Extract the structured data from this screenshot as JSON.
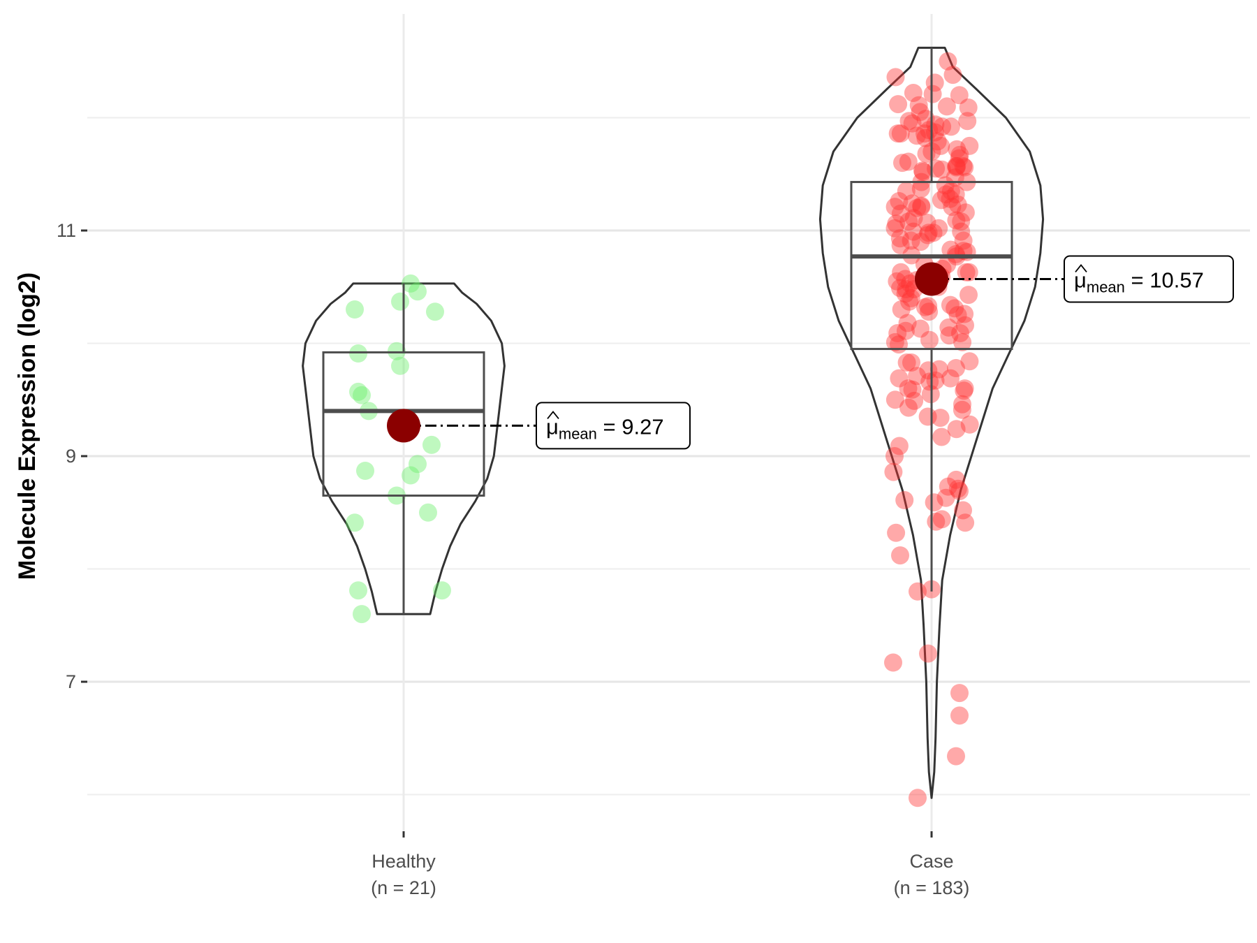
{
  "chart_data": {
    "type": "violin",
    "ylabel": "Molecule Expression (log2)",
    "xlabel": "",
    "ylim": [
      5.85,
      12.65
    ],
    "yticks": [
      7,
      9,
      11
    ],
    "ytick_labels": [
      "7",
      "9",
      "11"
    ],
    "grid": true,
    "groups": [
      {
        "label": "Healthy",
        "n_label": "(n = 21)",
        "color": "#66ee66",
        "violin_min": 7.6,
        "violin_max": 10.53,
        "density": [
          [
            7.6,
            0.2
          ],
          [
            7.8,
            0.24
          ],
          [
            8.0,
            0.29
          ],
          [
            8.2,
            0.35
          ],
          [
            8.4,
            0.43
          ],
          [
            8.6,
            0.54
          ],
          [
            8.8,
            0.63
          ],
          [
            9.0,
            0.68
          ],
          [
            9.2,
            0.7
          ],
          [
            9.4,
            0.72
          ],
          [
            9.6,
            0.74
          ],
          [
            9.8,
            0.76
          ],
          [
            10.0,
            0.74
          ],
          [
            10.2,
            0.66
          ],
          [
            10.35,
            0.55
          ],
          [
            10.45,
            0.44
          ],
          [
            10.53,
            0.38
          ]
        ],
        "box": {
          "q1": 8.65,
          "median": 9.4,
          "q3": 9.92,
          "whisker_low": 7.6,
          "whisker_high": 10.53
        },
        "mean": 9.27,
        "mean_label": "9.27",
        "points": [
          [
            -0.14,
            10.3
          ],
          [
            0.02,
            10.53
          ],
          [
            0.04,
            10.46
          ],
          [
            -0.01,
            10.37
          ],
          [
            0.09,
            10.28
          ],
          [
            -0.13,
            9.91
          ],
          [
            -0.02,
            9.93
          ],
          [
            -0.01,
            9.8
          ],
          [
            -0.13,
            9.57
          ],
          [
            -0.12,
            9.54
          ],
          [
            -0.1,
            9.4
          ],
          [
            0.08,
            9.1
          ],
          [
            0.04,
            8.93
          ],
          [
            0.02,
            8.83
          ],
          [
            -0.11,
            8.87
          ],
          [
            -0.02,
            8.65
          ],
          [
            0.07,
            8.5
          ],
          [
            -0.14,
            8.41
          ],
          [
            -0.13,
            7.81
          ],
          [
            0.11,
            7.81
          ],
          [
            -0.12,
            7.6
          ]
        ]
      },
      {
        "label": "Case",
        "n_label": "(n = 183)",
        "color": "#ff3333",
        "violin_min": 5.97,
        "violin_max": 12.62,
        "density": [
          [
            5.97,
            0.0
          ],
          [
            6.2,
            0.02
          ],
          [
            6.5,
            0.03
          ],
          [
            7.0,
            0.04
          ],
          [
            7.5,
            0.06
          ],
          [
            7.9,
            0.08
          ],
          [
            8.3,
            0.14
          ],
          [
            8.7,
            0.22
          ],
          [
            9.0,
            0.3
          ],
          [
            9.3,
            0.38
          ],
          [
            9.6,
            0.46
          ],
          [
            9.9,
            0.58
          ],
          [
            10.2,
            0.7
          ],
          [
            10.5,
            0.78
          ],
          [
            10.8,
            0.82
          ],
          [
            11.1,
            0.84
          ],
          [
            11.4,
            0.82
          ],
          [
            11.7,
            0.74
          ],
          [
            12.0,
            0.56
          ],
          [
            12.25,
            0.34
          ],
          [
            12.45,
            0.16
          ],
          [
            12.62,
            0.1
          ]
        ],
        "box": {
          "q1": 9.95,
          "median": 10.77,
          "q3": 11.43,
          "whisker_low": 7.8,
          "whisker_high": 12.62
        },
        "mean": 10.57,
        "mean_label": "10.57",
        "points": []
      }
    ],
    "annotation": {
      "mu_symbol": "μ",
      "subscript": "mean",
      "equals": "="
    }
  }
}
